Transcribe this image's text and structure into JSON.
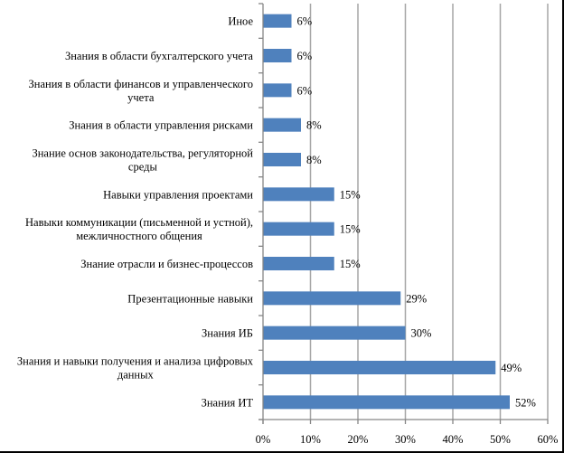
{
  "chart_data": {
    "type": "bar",
    "orientation": "horizontal",
    "title": "",
    "xlabel": "",
    "ylabel": "",
    "categories": [
      "Иное",
      "Знания в области бухгалтерского учета",
      "Знания в области финансов и управленческого учета",
      "Знания в области управления рисками",
      "Знание основ законодательства, регуляторной среды",
      "Навыки управления проектами",
      "Навыки коммуникации (письменной и устной), межличностного общения",
      "Знание отрасли и бизнес-процессов",
      "Презентационные навыки",
      "Знания ИБ",
      "Знания и навыки получения и анализа цифровых данных",
      "Знания ИТ"
    ],
    "category_lines": [
      [
        "Иное"
      ],
      [
        "Знания в области бухгалтерского учета"
      ],
      [
        "Знания в области финансов и управленческого",
        "учета"
      ],
      [
        "Знания в области управления  рисками"
      ],
      [
        "Знание основ законодательства, регуляторной",
        "среды"
      ],
      [
        "Навыки управления  проектами"
      ],
      [
        "Навыки коммуникации (письменной и устной),",
        "межличностного общения"
      ],
      [
        "Знание отрасли и бизнес-процессов"
      ],
      [
        "Презентационные навыки"
      ],
      [
        "Знания ИБ"
      ],
      [
        "Знания и навыки получения и анализа цифровых",
        "данных"
      ],
      [
        "Знания ИТ"
      ]
    ],
    "values": [
      6,
      6,
      6,
      8,
      8,
      15,
      15,
      15,
      29,
      30,
      49,
      52
    ],
    "value_labels": [
      "6%",
      "6%",
      "6%",
      "8%",
      "8%",
      "15%",
      "15%",
      "15%",
      "29%",
      "30%",
      "49%",
      "52%"
    ],
    "xlim": [
      0,
      60
    ],
    "x_ticks": [
      "0%",
      "10%",
      "20%",
      "30%",
      "40%",
      "50%",
      "60%"
    ],
    "grid": {
      "vertical": true,
      "horizontal": false
    },
    "legend": null,
    "bar_color": "#4f81bd",
    "data_labels": true
  }
}
